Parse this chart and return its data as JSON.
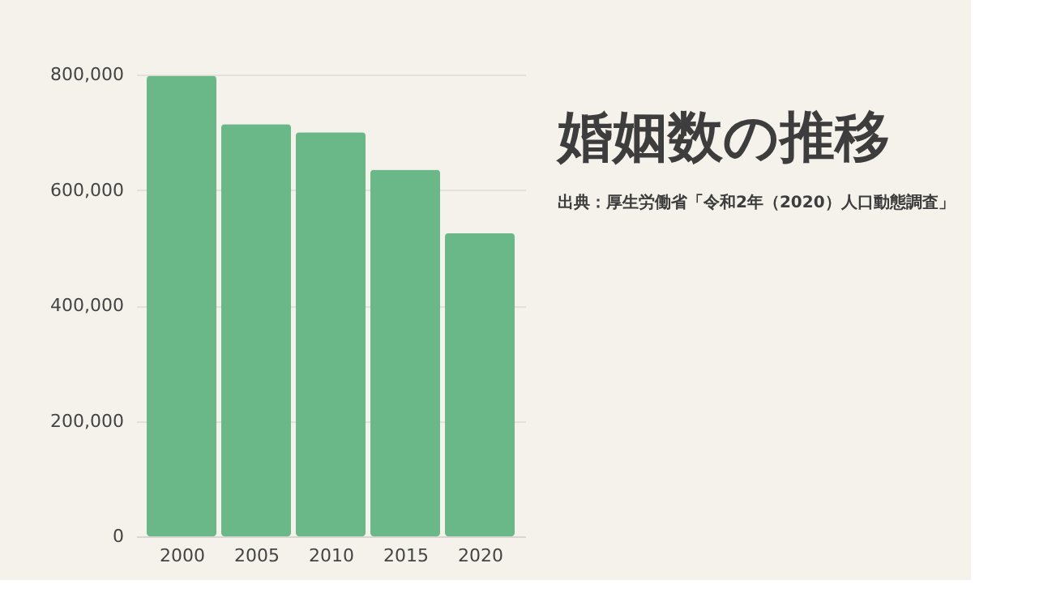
{
  "chart_data": {
    "type": "bar",
    "title": "婚姻数の推移",
    "annotations": [
      "出典：厚生労働省「令和2年（2020）人口動態調査」"
    ],
    "categories": [
      "2000",
      "2005",
      "2010",
      "2015",
      "2020"
    ],
    "values": [
      798000,
      714000,
      700000,
      635000,
      525000
    ],
    "color": "#6ab887",
    "ylim": [
      0,
      800000
    ],
    "yticks": [
      {
        "value": 0,
        "label": "0"
      },
      {
        "value": 200000,
        "label": "200,000"
      },
      {
        "value": 400000,
        "label": "400,000"
      },
      {
        "value": 600000,
        "label": "600,000"
      },
      {
        "value": 800000,
        "label": "800,000"
      }
    ],
    "grid": "y"
  }
}
